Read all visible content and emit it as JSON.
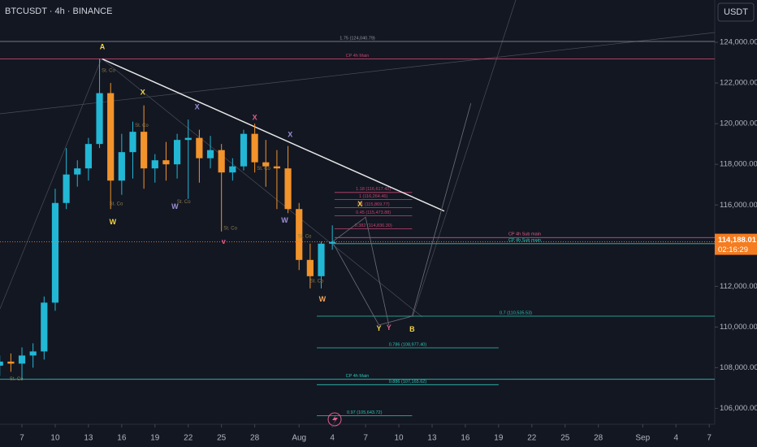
{
  "chart_data": {
    "type": "candlestick",
    "title": "BTCUSDT · 4h · BINANCE",
    "currency_button": "USDT",
    "xlim": [
      5.02,
      69.5
    ],
    "xticks": [
      7,
      10,
      13,
      16,
      19,
      22,
      25,
      28,
      {
        "value": 32,
        "label": "Aug"
      },
      {
        "value": 35,
        "label": "4"
      },
      {
        "value": 38,
        "label": "7"
      },
      {
        "value": 41,
        "label": "10"
      },
      {
        "value": 44,
        "label": "13"
      },
      {
        "value": 47,
        "label": "16"
      },
      {
        "value": 50,
        "label": "19"
      },
      {
        "value": 53,
        "label": "22"
      },
      {
        "value": 56,
        "label": "25"
      },
      {
        "value": 59,
        "label": "28"
      },
      {
        "value": 63,
        "label": "Sep"
      },
      {
        "value": 66,
        "label": "4"
      },
      {
        "value": 69,
        "label": "7"
      }
    ],
    "ylim": [
      105300,
      126080
    ],
    "yticks": [
      {
        "value": 106000,
        "label": "106,000.00"
      },
      {
        "value": 108000,
        "label": "108,000.00"
      },
      {
        "value": 110000,
        "label": "110,000.00"
      },
      {
        "value": 112000,
        "label": "112,000.00"
      },
      {
        "value": 114000,
        "label": "114,000.00"
      },
      {
        "value": 116000,
        "label": "116,000.00"
      },
      {
        "value": 118000,
        "label": "118,000.00"
      },
      {
        "value": 120000,
        "label": "120,000.00"
      },
      {
        "value": 122000,
        "label": "122,000.00"
      },
      {
        "value": 124000,
        "label": "124,000.00"
      }
    ],
    "up_color": "#22b7d5",
    "down_color": "#f2932b",
    "candles": [
      {
        "x": 5,
        "o": 108100,
        "h": 108600,
        "l": 107600,
        "c": 108300
      },
      {
        "x": 6,
        "o": 108300,
        "h": 108700,
        "l": 107800,
        "c": 108200
      },
      {
        "x": 7,
        "o": 108200,
        "h": 109000,
        "l": 107400,
        "c": 108600
      },
      {
        "x": 8,
        "o": 108600,
        "h": 109200,
        "l": 108000,
        "c": 108800
      },
      {
        "x": 9,
        "o": 108800,
        "h": 111500,
        "l": 108400,
        "c": 111200
      },
      {
        "x": 10,
        "o": 111200,
        "h": 116800,
        "l": 110800,
        "c": 116100
      },
      {
        "x": 11,
        "o": 116100,
        "h": 118800,
        "l": 115800,
        "c": 117500
      },
      {
        "x": 12,
        "o": 117500,
        "h": 118200,
        "l": 116900,
        "c": 117800
      },
      {
        "x": 13,
        "o": 117800,
        "h": 119300,
        "l": 117200,
        "c": 119000
      },
      {
        "x": 14,
        "o": 119000,
        "h": 123200,
        "l": 118800,
        "c": 121500
      },
      {
        "x": 15,
        "o": 121500,
        "h": 122000,
        "l": 115800,
        "c": 117200
      },
      {
        "x": 16,
        "o": 117200,
        "h": 119500,
        "l": 116500,
        "c": 118600
      },
      {
        "x": 17,
        "o": 118600,
        "h": 120100,
        "l": 117300,
        "c": 119600
      },
      {
        "x": 18,
        "o": 119600,
        "h": 120900,
        "l": 116800,
        "c": 117800
      },
      {
        "x": 19,
        "o": 117800,
        "h": 118500,
        "l": 117100,
        "c": 118200
      },
      {
        "x": 20,
        "o": 118200,
        "h": 119100,
        "l": 117200,
        "c": 118000
      },
      {
        "x": 21,
        "o": 118000,
        "h": 119500,
        "l": 117300,
        "c": 119200
      },
      {
        "x": 22,
        "o": 119200,
        "h": 120200,
        "l": 116300,
        "c": 119300
      },
      {
        "x": 23,
        "o": 119300,
        "h": 119700,
        "l": 117100,
        "c": 118300
      },
      {
        "x": 24,
        "o": 118300,
        "h": 119400,
        "l": 117800,
        "c": 118700
      },
      {
        "x": 25,
        "o": 118700,
        "h": 119000,
        "l": 114700,
        "c": 117600
      },
      {
        "x": 26,
        "o": 117600,
        "h": 118300,
        "l": 117200,
        "c": 117900
      },
      {
        "x": 27,
        "o": 117900,
        "h": 119700,
        "l": 117700,
        "c": 119500
      },
      {
        "x": 28,
        "o": 119500,
        "h": 120000,
        "l": 117600,
        "c": 118100
      },
      {
        "x": 29,
        "o": 118100,
        "h": 119200,
        "l": 116900,
        "c": 117900
      },
      {
        "x": 30,
        "o": 117900,
        "h": 118700,
        "l": 115800,
        "c": 117800
      },
      {
        "x": 31,
        "o": 117800,
        "h": 118900,
        "l": 115600,
        "c": 115800
      },
      {
        "x": 32,
        "o": 115800,
        "h": 116100,
        "l": 112800,
        "c": 113300
      },
      {
        "x": 33,
        "o": 113300,
        "h": 114100,
        "l": 111900,
        "c": 112500
      },
      {
        "x": 34,
        "o": 112500,
        "h": 114200,
        "l": 111900,
        "c": 114100
      },
      {
        "x": 35,
        "o": 114100,
        "h": 115000,
        "l": 113800,
        "c": 114188.01
      }
    ],
    "last_price": {
      "value": 114188.01,
      "label": "114,188.01",
      "countdown": "02:16:29",
      "color": "#f57c1f"
    },
    "levels": [
      {
        "label": "1.75 (124,040.79)",
        "value": 124040.79,
        "color": "#9598a1",
        "x0": 5.02,
        "x1": 69.5
      },
      {
        "label": "CP 4h Main",
        "value": 123180,
        "color": "#c2456f",
        "x0": 5.02,
        "x1": 69.5
      },
      {
        "label": "1.18 (116,617.42)",
        "value": 116617.42,
        "color": "#c2456f",
        "x0": 35.2,
        "x1": 42.2
      },
      {
        "label": "1 (116,264.46)",
        "value": 116264.46,
        "color": "#c2456f",
        "x0": 35.2,
        "x1": 42.2
      },
      {
        "label": "0.5 (115,869.77)",
        "value": 115869.77,
        "color": "#c2456f",
        "x0": 35.2,
        "x1": 42.2
      },
      {
        "label": "0.45 (115,473.88)",
        "value": 115473.88,
        "color": "#c2456f",
        "x0": 35.2,
        "x1": 42.2
      },
      {
        "label": "0.382 (114,836.30)",
        "value": 114836.3,
        "color": "#c2456f",
        "x0": 35.2,
        "x1": 42.2
      },
      {
        "label": "CP 4h Sub main",
        "value": 114400,
        "color": "#e0608a",
        "x0": 35.2,
        "x1": 69.5
      },
      {
        "label": "CP 4h Sub main",
        "value": 114100,
        "color": "#2cc4b4",
        "x0": 35.2,
        "x1": 69.5
      },
      {
        "label": "0.7 (110,535.53)",
        "value": 110535.53,
        "color": "#2cc4b4",
        "x0": 33.6,
        "x1": 69.5
      },
      {
        "label": "0.786 (108,977.40)",
        "value": 108977.4,
        "color": "#2cc4b4",
        "x0": 33.6,
        "x1": 50
      },
      {
        "label": "CP 4h Main",
        "value": 107430,
        "color": "#2cc4b4",
        "x0": 5.02,
        "x1": 69.5
      },
      {
        "label": "0.886 (107,165.62)",
        "value": 107165.62,
        "color": "#2cc4b4",
        "x0": 33.6,
        "x1": 50
      },
      {
        "label": "0.97 (105,643.72)",
        "value": 105643.72,
        "color": "#2cc4b4",
        "x0": 33.6,
        "x1": 42.2
      }
    ],
    "trendlines": [
      {
        "color": "#e8e8e8",
        "x": [
          14.25,
          45.1
        ],
        "y": [
          123180,
          115700
        ]
      },
      {
        "color": "#6d7079",
        "x": [
          35,
          39.2,
          42.2,
          47.5
        ],
        "y": [
          114188.01,
          110100,
          110535.53,
          121000
        ]
      },
      {
        "color": "#6d7079",
        "x": [
          35,
          38,
          40.1
        ],
        "y": [
          114188.01,
          115400,
          110100
        ]
      }
    ],
    "annotations": [
      {
        "text": "A",
        "x": 14.25,
        "y": 123760,
        "color": "#f5d442"
      },
      {
        "text": "X",
        "x": 17.9,
        "y": 121525,
        "color": "#f5d442"
      },
      {
        "text": "X",
        "x": 22.8,
        "y": 120806,
        "color": "#9c8fd6"
      },
      {
        "text": "X",
        "x": 28,
        "y": 120287,
        "color": "#e45b89"
      },
      {
        "text": "X",
        "x": 31.2,
        "y": 119449,
        "color": "#9c8fd6"
      },
      {
        "text": "X",
        "x": 37.5,
        "y": 116016,
        "color": "#f5d442"
      },
      {
        "text": "W",
        "x": 15.2,
        "y": 115138,
        "color": "#f5d442"
      },
      {
        "text": "W",
        "x": 20.8,
        "y": 115896,
        "color": "#9c8fd6"
      },
      {
        "text": "v",
        "x": 25.2,
        "y": 114180,
        "color": "#e45b89"
      },
      {
        "text": "W",
        "x": 30.7,
        "y": 115218,
        "color": "#9c8fd6"
      },
      {
        "text": "W",
        "x": 34.1,
        "y": 111345,
        "color": "#f5a35a"
      },
      {
        "text": "Y",
        "x": 39.2,
        "y": 109908,
        "color": "#f5d442"
      },
      {
        "text": "Y",
        "x": 40.1,
        "y": 109948,
        "color": "#e45b89"
      },
      {
        "text": "B",
        "x": 42.2,
        "y": 109868,
        "color": "#f5d442"
      },
      {
        "text": "St. Co",
        "x": 15.5,
        "y": 116050,
        "color": "#8a7a4a"
      },
      {
        "text": "St. Co",
        "x": 14.8,
        "y": 122600,
        "color": "#8a7a4a"
      },
      {
        "text": "St. Co",
        "x": 17.8,
        "y": 119900,
        "color": "#8a7a4a"
      },
      {
        "text": "St. Co",
        "x": 21.6,
        "y": 116150,
        "color": "#8a7a4a"
      },
      {
        "text": "St. Co",
        "x": 25.8,
        "y": 114850,
        "color": "#8a7a4a"
      },
      {
        "text": "St. Co",
        "x": 28.8,
        "y": 117800,
        "color": "#8a7a4a"
      },
      {
        "text": "St. Co",
        "x": 32.5,
        "y": 114450,
        "color": "#8a7a4a"
      },
      {
        "text": "St. Co",
        "x": 33.6,
        "y": 112250,
        "color": "#8a7a4a"
      },
      {
        "text": "St. Co",
        "x": 6.5,
        "y": 107450,
        "color": "#8a7a4a"
      }
    ]
  }
}
